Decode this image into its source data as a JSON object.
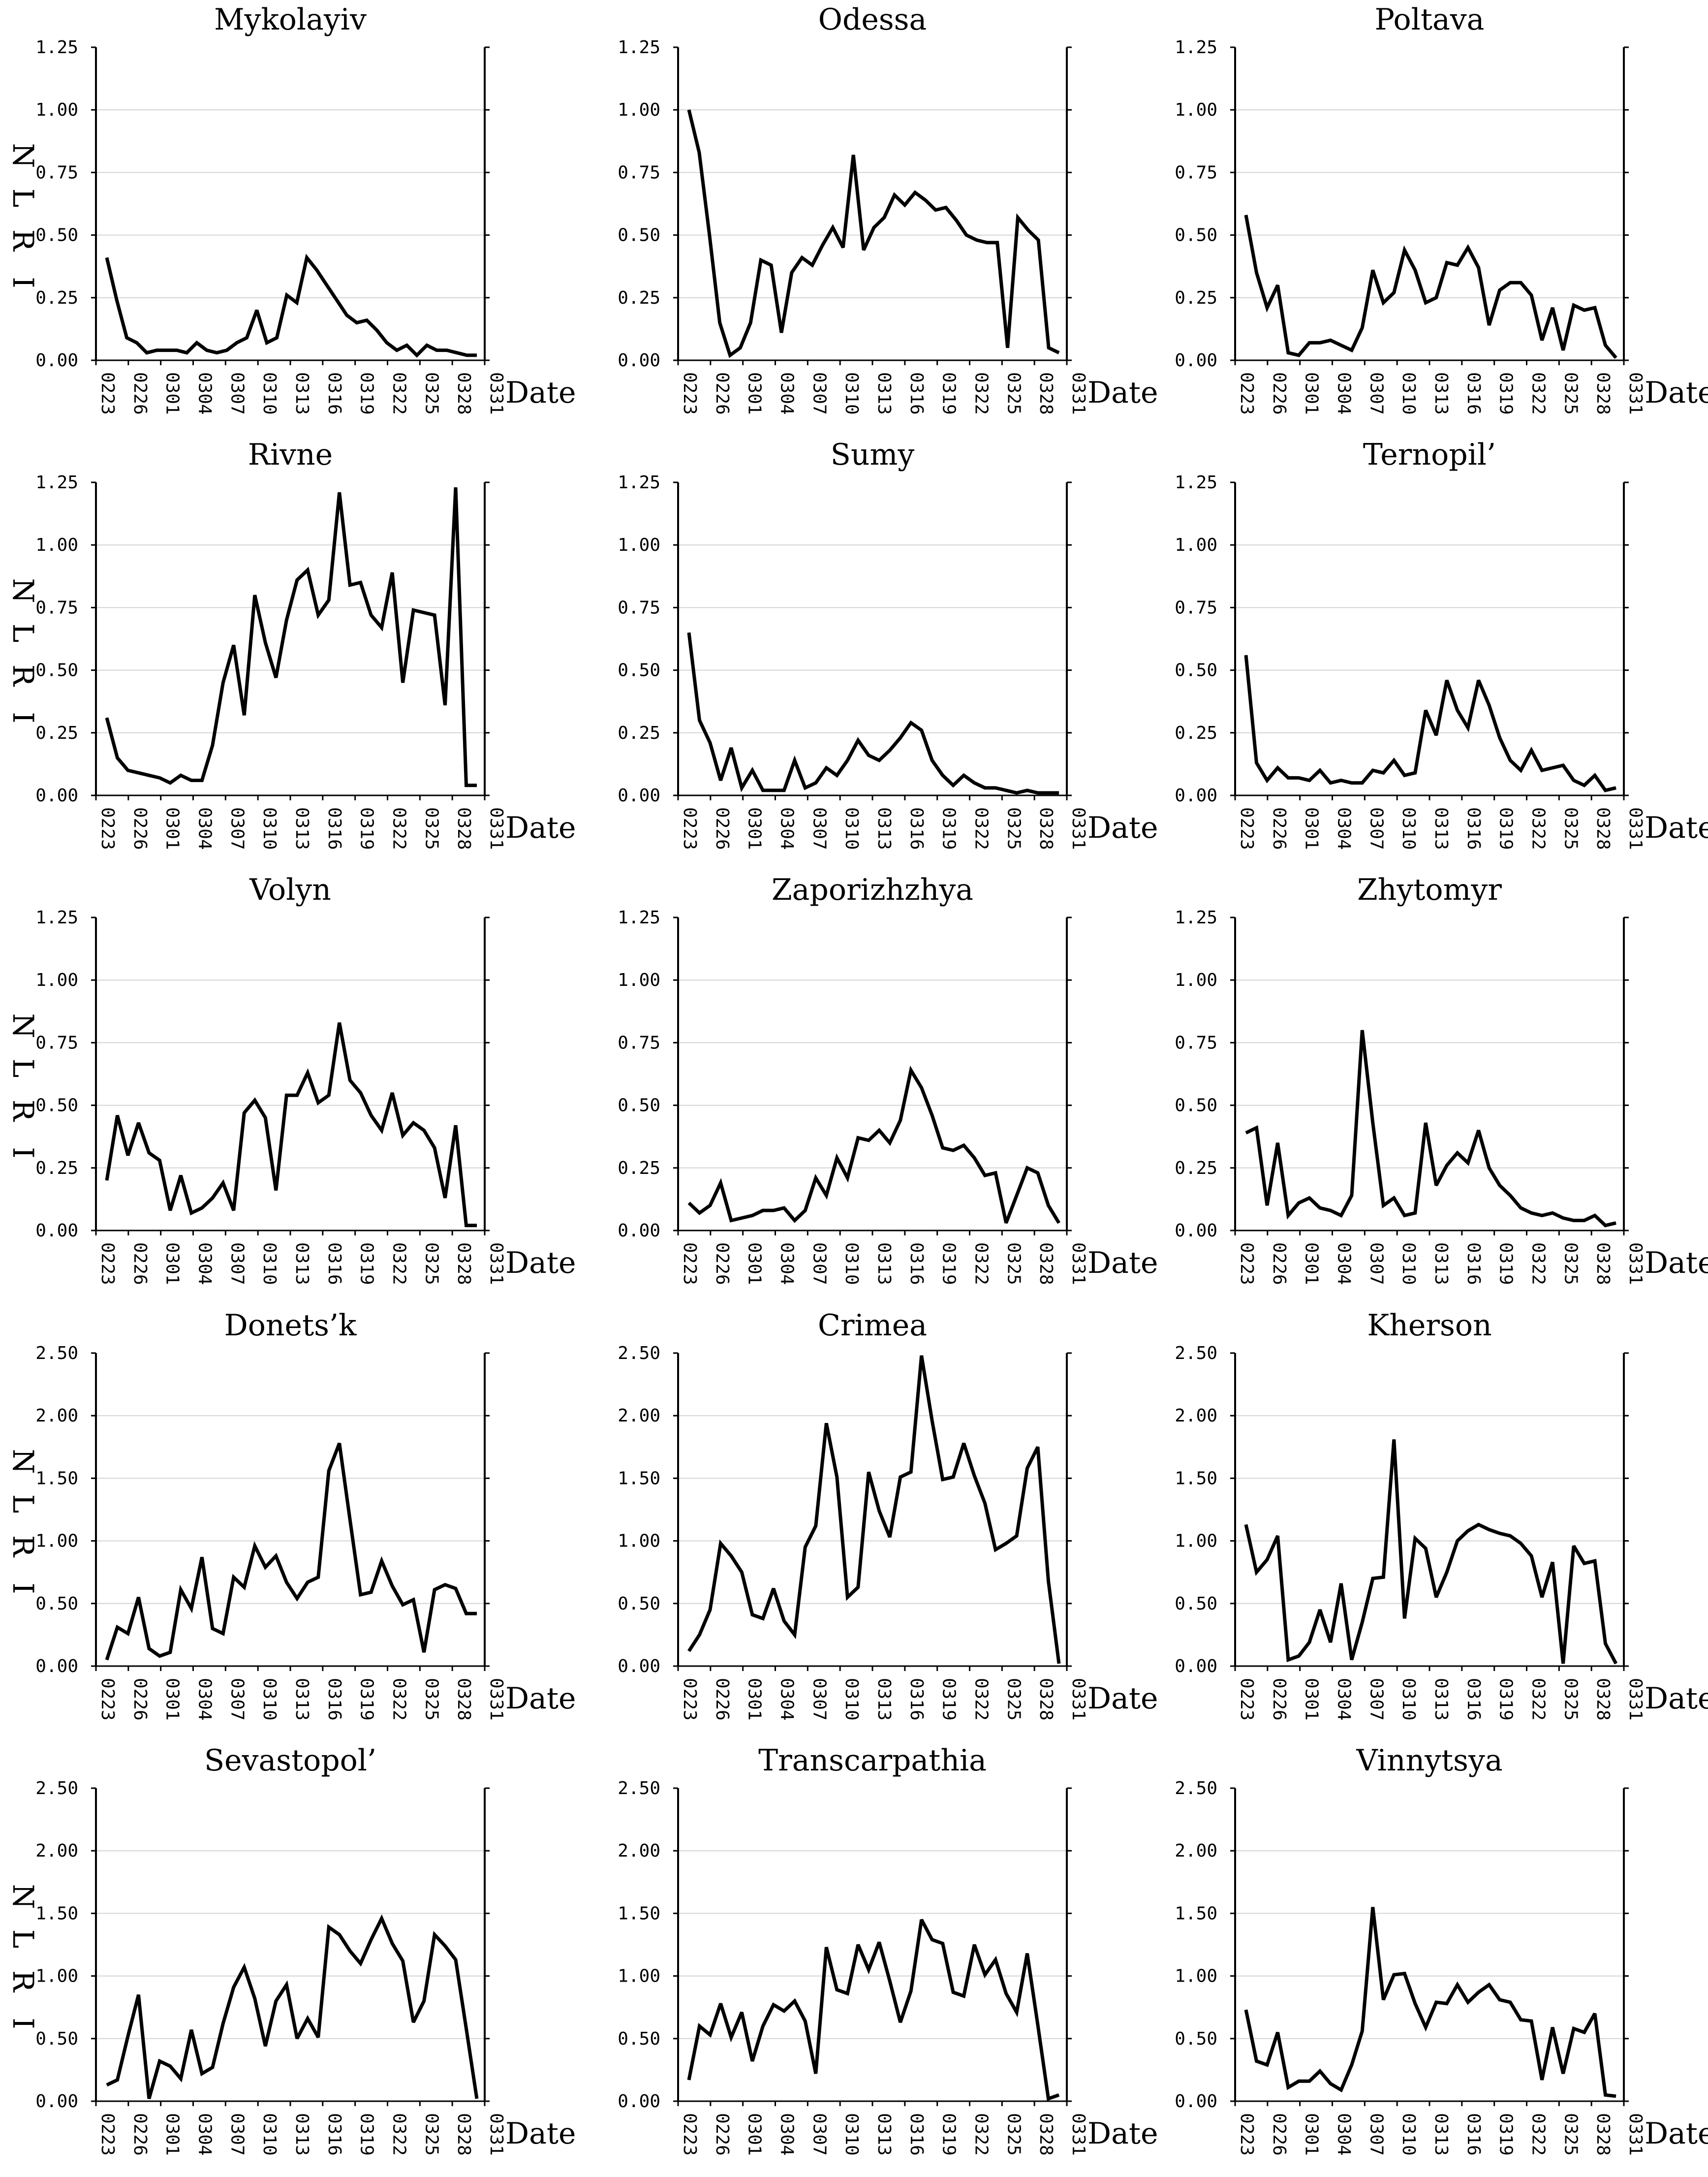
{
  "chart_data": [
    {
      "type": "line",
      "title": "Mykolayiv",
      "xlabel": "Date",
      "ylabel": "NLRI",
      "ylim": [
        0,
        1.25
      ],
      "yticks": [
        "0.00",
        "0.25",
        "0.50",
        "0.75",
        "1.00",
        "1.25"
      ],
      "values": [
        0.41,
        0.24,
        0.09,
        0.07,
        0.03,
        0.04,
        0.04,
        0.04,
        0.03,
        0.07,
        0.04,
        0.03,
        0.04,
        0.07,
        0.09,
        0.2,
        0.07,
        0.09,
        0.26,
        0.23,
        0.41,
        0.36,
        0.3,
        0.24,
        0.18,
        0.15,
        0.16,
        0.12,
        0.07,
        0.04,
        0.06,
        0.02,
        0.06,
        0.04,
        0.04,
        0.03,
        0.02,
        0.02
      ]
    },
    {
      "type": "line",
      "title": "Odessa",
      "xlabel": "Date",
      "ylabel": "NLRI",
      "ylim": [
        0,
        1.25
      ],
      "yticks": [
        "0.00",
        "0.25",
        "0.50",
        "0.75",
        "1.00",
        "1.25"
      ],
      "values": [
        1.0,
        0.83,
        0.5,
        0.15,
        0.02,
        0.05,
        0.15,
        0.4,
        0.38,
        0.11,
        0.35,
        0.41,
        0.38,
        0.46,
        0.53,
        0.45,
        0.82,
        0.44,
        0.53,
        0.57,
        0.66,
        0.62,
        0.67,
        0.64,
        0.6,
        0.61,
        0.56,
        0.5,
        0.48,
        0.47,
        0.47,
        0.05,
        0.57,
        0.52,
        0.48,
        0.05,
        0.03
      ]
    },
    {
      "type": "line",
      "title": "Poltava",
      "xlabel": "Date",
      "ylabel": "NLRI",
      "ylim": [
        0,
        1.25
      ],
      "yticks": [
        "0.00",
        "0.25",
        "0.50",
        "0.75",
        "1.00",
        "1.25"
      ],
      "values": [
        0.58,
        0.35,
        0.21,
        0.3,
        0.03,
        0.02,
        0.07,
        0.07,
        0.08,
        0.06,
        0.04,
        0.13,
        0.36,
        0.23,
        0.27,
        0.44,
        0.36,
        0.23,
        0.25,
        0.39,
        0.38,
        0.45,
        0.37,
        0.14,
        0.28,
        0.31,
        0.31,
        0.26,
        0.08,
        0.21,
        0.04,
        0.22,
        0.2,
        0.21,
        0.06,
        0.01
      ]
    },
    {
      "type": "line",
      "title": "Rivne",
      "xlabel": "Date",
      "ylabel": "NLRI",
      "ylim": [
        0,
        1.25
      ],
      "yticks": [
        "0.00",
        "0.25",
        "0.50",
        "0.75",
        "1.00",
        "1.25"
      ],
      "values": [
        0.31,
        0.15,
        0.1,
        0.09,
        0.08,
        0.07,
        0.05,
        0.08,
        0.06,
        0.06,
        0.2,
        0.45,
        0.6,
        0.32,
        0.8,
        0.61,
        0.47,
        0.7,
        0.86,
        0.9,
        0.72,
        0.78,
        1.21,
        0.84,
        0.85,
        0.72,
        0.67,
        0.89,
        0.45,
        0.74,
        0.73,
        0.72,
        0.36,
        1.23,
        0.04,
        0.04
      ]
    },
    {
      "type": "line",
      "title": "Sumy",
      "xlabel": "Date",
      "ylabel": "NLRI",
      "ylim": [
        0,
        1.25
      ],
      "yticks": [
        "0.00",
        "0.25",
        "0.50",
        "0.75",
        "1.00",
        "1.25"
      ],
      "values": [
        0.65,
        0.3,
        0.21,
        0.06,
        0.19,
        0.03,
        0.1,
        0.02,
        0.02,
        0.02,
        0.14,
        0.03,
        0.05,
        0.11,
        0.08,
        0.14,
        0.22,
        0.16,
        0.14,
        0.18,
        0.23,
        0.29,
        0.26,
        0.14,
        0.08,
        0.04,
        0.08,
        0.05,
        0.03,
        0.03,
        0.02,
        0.01,
        0.02,
        0.01,
        0.01,
        0.01
      ]
    },
    {
      "type": "line",
      "title": "Ternopil’",
      "xlabel": "Date",
      "ylabel": "NLRI",
      "ylim": [
        0,
        1.25
      ],
      "yticks": [
        "0.00",
        "0.25",
        "0.50",
        "0.75",
        "1.00",
        "1.25"
      ],
      "values": [
        0.56,
        0.13,
        0.06,
        0.11,
        0.07,
        0.07,
        0.06,
        0.1,
        0.05,
        0.06,
        0.05,
        0.05,
        0.1,
        0.09,
        0.14,
        0.08,
        0.09,
        0.34,
        0.24,
        0.46,
        0.34,
        0.27,
        0.46,
        0.36,
        0.23,
        0.14,
        0.1,
        0.18,
        0.1,
        0.11,
        0.12,
        0.06,
        0.04,
        0.08,
        0.02,
        0.03
      ]
    },
    {
      "type": "line",
      "title": "Volyn",
      "xlabel": "Date",
      "ylabel": "NLRI",
      "ylim": [
        0,
        1.25
      ],
      "yticks": [
        "0.00",
        "0.25",
        "0.50",
        "0.75",
        "1.00",
        "1.25"
      ],
      "values": [
        0.2,
        0.46,
        0.3,
        0.43,
        0.31,
        0.28,
        0.08,
        0.22,
        0.07,
        0.09,
        0.13,
        0.19,
        0.08,
        0.47,
        0.52,
        0.45,
        0.16,
        0.54,
        0.54,
        0.63,
        0.51,
        0.54,
        0.83,
        0.6,
        0.55,
        0.46,
        0.4,
        0.55,
        0.38,
        0.43,
        0.4,
        0.33,
        0.13,
        0.42,
        0.02,
        0.02
      ]
    },
    {
      "type": "line",
      "title": "Zaporizhzhya",
      "xlabel": "Date",
      "ylabel": "NLRI",
      "ylim": [
        0,
        1.25
      ],
      "yticks": [
        "0.00",
        "0.25",
        "0.50",
        "0.75",
        "1.00",
        "1.25"
      ],
      "values": [
        0.11,
        0.07,
        0.1,
        0.19,
        0.04,
        0.05,
        0.06,
        0.08,
        0.08,
        0.09,
        0.04,
        0.08,
        0.21,
        0.14,
        0.29,
        0.21,
        0.37,
        0.36,
        0.4,
        0.35,
        0.44,
        0.64,
        0.57,
        0.46,
        0.33,
        0.32,
        0.34,
        0.29,
        0.22,
        0.23,
        0.03,
        0.14,
        0.25,
        0.23,
        0.1,
        0.03
      ]
    },
    {
      "type": "line",
      "title": "Zhytomyr",
      "xlabel": "Date",
      "ylabel": "NLRI",
      "ylim": [
        0,
        1.25
      ],
      "yticks": [
        "0.00",
        "0.25",
        "0.50",
        "0.75",
        "1.00",
        "1.25"
      ],
      "values": [
        0.39,
        0.41,
        0.1,
        0.35,
        0.06,
        0.11,
        0.13,
        0.09,
        0.08,
        0.06,
        0.14,
        0.8,
        0.43,
        0.1,
        0.13,
        0.06,
        0.07,
        0.43,
        0.18,
        0.26,
        0.31,
        0.27,
        0.4,
        0.25,
        0.18,
        0.14,
        0.09,
        0.07,
        0.06,
        0.07,
        0.05,
        0.04,
        0.04,
        0.06,
        0.02,
        0.03
      ]
    },
    {
      "type": "line",
      "title": "Donets’k",
      "xlabel": "Date",
      "ylabel": "NLRI",
      "ylim": [
        0,
        2.5
      ],
      "yticks": [
        "0.00",
        "0.50",
        "1.00",
        "1.50",
        "2.00",
        "2.50"
      ],
      "values": [
        0.05,
        0.31,
        0.26,
        0.55,
        0.14,
        0.08,
        0.11,
        0.61,
        0.46,
        0.87,
        0.3,
        0.26,
        0.71,
        0.63,
        0.96,
        0.79,
        0.88,
        0.67,
        0.54,
        0.67,
        0.71,
        1.56,
        1.78,
        1.17,
        0.57,
        0.59,
        0.84,
        0.64,
        0.49,
        0.53,
        0.11,
        0.61,
        0.65,
        0.62,
        0.42,
        0.42
      ]
    },
    {
      "type": "line",
      "title": "Crimea",
      "xlabel": "Date",
      "ylabel": "NLRI",
      "ylim": [
        0,
        2.5
      ],
      "yticks": [
        "0.00",
        "0.50",
        "1.00",
        "1.50",
        "2.00",
        "2.50"
      ],
      "values": [
        0.12,
        0.25,
        0.45,
        0.98,
        0.88,
        0.75,
        0.41,
        0.38,
        0.62,
        0.36,
        0.25,
        0.95,
        1.12,
        1.94,
        1.51,
        0.55,
        0.63,
        1.55,
        1.24,
        1.03,
        1.51,
        1.55,
        2.48,
        1.96,
        1.49,
        1.51,
        1.78,
        1.52,
        1.3,
        0.93,
        0.98,
        1.04,
        1.58,
        1.75,
        0.68,
        0.02
      ]
    },
    {
      "type": "line",
      "title": "Kherson",
      "xlabel": "Date",
      "ylabel": "NLRI",
      "ylim": [
        0,
        2.5
      ],
      "yticks": [
        "0.00",
        "0.50",
        "1.00",
        "1.50",
        "2.00",
        "2.50"
      ],
      "values": [
        1.13,
        0.75,
        0.85,
        1.04,
        0.05,
        0.08,
        0.19,
        0.45,
        0.19,
        0.66,
        0.05,
        0.35,
        0.7,
        0.71,
        1.81,
        0.38,
        1.02,
        0.94,
        0.55,
        0.75,
        1.0,
        1.08,
        1.13,
        1.09,
        1.06,
        1.04,
        0.98,
        0.88,
        0.55,
        0.83,
        0.02,
        0.96,
        0.82,
        0.84,
        0.18,
        0.02
      ]
    },
    {
      "type": "line",
      "title": "Sevastopol’",
      "xlabel": "Date",
      "ylabel": "NLRI",
      "ylim": [
        0,
        2.5
      ],
      "yticks": [
        "0.00",
        "0.50",
        "1.00",
        "1.50",
        "2.00",
        "2.50"
      ],
      "values": [
        0.13,
        0.17,
        0.52,
        0.85,
        0.02,
        0.32,
        0.28,
        0.18,
        0.57,
        0.22,
        0.27,
        0.62,
        0.91,
        1.07,
        0.82,
        0.44,
        0.8,
        0.93,
        0.5,
        0.66,
        0.51,
        1.39,
        1.33,
        1.2,
        1.1,
        1.29,
        1.46,
        1.26,
        1.12,
        0.63,
        0.8,
        1.33,
        1.24,
        1.13,
        0.58,
        0.02
      ]
    },
    {
      "type": "line",
      "title": "Transcarpathia",
      "xlabel": "Date",
      "ylabel": "NLRI",
      "ylim": [
        0,
        2.5
      ],
      "yticks": [
        "0.00",
        "0.50",
        "1.00",
        "1.50",
        "2.00",
        "2.50"
      ],
      "values": [
        0.17,
        0.6,
        0.53,
        0.78,
        0.51,
        0.71,
        0.32,
        0.6,
        0.77,
        0.72,
        0.8,
        0.64,
        0.22,
        1.23,
        0.89,
        0.86,
        1.25,
        1.05,
        1.27,
        0.96,
        0.63,
        0.88,
        1.45,
        1.29,
        1.26,
        0.87,
        0.84,
        1.25,
        1.01,
        1.13,
        0.86,
        0.71,
        1.18,
        0.61,
        0.02,
        0.05
      ]
    },
    {
      "type": "line",
      "title": "Vinnytsya",
      "xlabel": "Date",
      "ylabel": "NLRI",
      "ylim": [
        0,
        2.5
      ],
      "yticks": [
        "0.00",
        "0.50",
        "1.00",
        "1.50",
        "2.00",
        "2.50"
      ],
      "values": [
        0.73,
        0.32,
        0.29,
        0.55,
        0.11,
        0.16,
        0.16,
        0.24,
        0.14,
        0.09,
        0.29,
        0.56,
        1.55,
        0.81,
        1.01,
        1.02,
        0.78,
        0.59,
        0.79,
        0.78,
        0.93,
        0.79,
        0.87,
        0.93,
        0.81,
        0.79,
        0.65,
        0.64,
        0.17,
        0.59,
        0.22,
        0.58,
        0.55,
        0.7,
        0.05,
        0.04
      ]
    }
  ],
  "x_ticks": [
    "0223",
    "0226",
    "0301",
    "0304",
    "0307",
    "0310",
    "0313",
    "0316",
    "0319",
    "0322",
    "0325",
    "0328",
    "0331"
  ],
  "axis_labels": {
    "x": "Date",
    "y_letters": [
      "N",
      "L",
      "R",
      "I"
    ]
  },
  "colors": {
    "line": "#000000",
    "grid": "#d4d4d4",
    "axis": "#000000"
  }
}
